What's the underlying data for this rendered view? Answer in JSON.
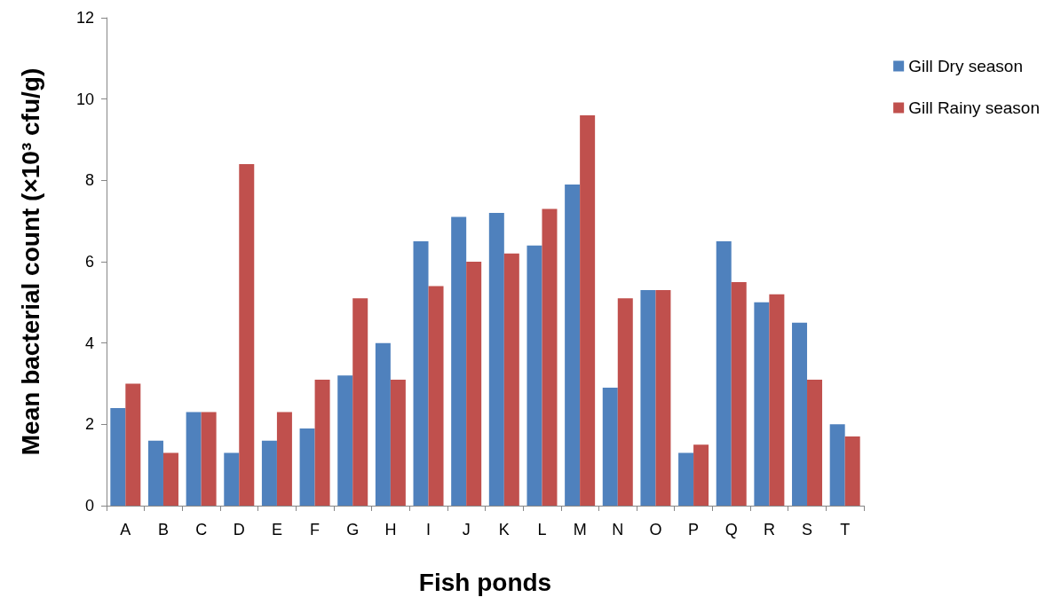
{
  "chart_data": {
    "type": "bar",
    "xlabel": "Fish ponds",
    "ylabel": "Mean bacterial count (×10³ cfu/g)",
    "categories": [
      "A",
      "B",
      "C",
      "D",
      "E",
      "F",
      "G",
      "H",
      "I",
      "J",
      "K",
      "L",
      "M",
      "N",
      "O",
      "P",
      "Q",
      "R",
      "S",
      "T"
    ],
    "series": [
      {
        "name": "Gill Dry season",
        "color": "#4f81bd",
        "values": [
          2.4,
          1.6,
          2.3,
          1.3,
          1.6,
          1.9,
          3.2,
          4.0,
          6.5,
          7.1,
          7.2,
          6.4,
          7.9,
          2.9,
          5.3,
          1.3,
          6.5,
          5.0,
          4.5,
          2.0
        ]
      },
      {
        "name": "Gill Rainy season",
        "color": "#c0504d",
        "values": [
          3.0,
          1.3,
          2.3,
          8.4,
          2.3,
          3.1,
          5.1,
          3.1,
          5.4,
          6.0,
          6.2,
          7.3,
          9.6,
          5.1,
          5.3,
          1.5,
          5.5,
          5.2,
          3.1,
          1.7
        ]
      }
    ],
    "ylim": [
      0,
      12
    ],
    "yticks": [
      0,
      2,
      4,
      6,
      8,
      10,
      12
    ],
    "grid": false,
    "legend": "top right"
  }
}
